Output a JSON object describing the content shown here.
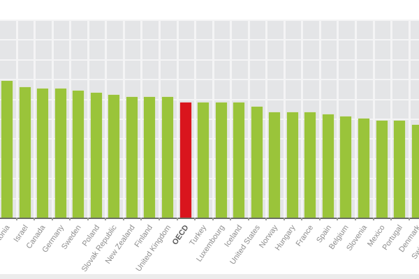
{
  "chart_data": {
    "type": "bar",
    "title": "",
    "xlabel": "",
    "ylabel": "",
    "ylim": [
      0,
      10
    ],
    "grid": true,
    "legend": null,
    "note": "Y-axis has no visible tick labels; values are expressed in gridline units (10 equal intervals).",
    "categories": [
      "Estonia",
      "Israel",
      "Canada",
      "Germany",
      "Sweden",
      "Poland",
      "Slovak Republic",
      "New Zealand",
      "Finland",
      "United Kingdom",
      "OECD",
      "Turkey",
      "Luxembourg",
      "Iceland",
      "United States",
      "Norway",
      "Hungary",
      "France",
      "Spain",
      "Belgium",
      "Slovenia",
      "Mexico",
      "Portugal",
      "Denmark",
      "Switzerland"
    ],
    "values": [
      6.9,
      6.6,
      6.5,
      6.5,
      6.4,
      6.3,
      6.2,
      6.1,
      6.1,
      6.1,
      5.8,
      5.8,
      5.8,
      5.8,
      5.6,
      5.3,
      5.3,
      5.3,
      5.2,
      5.1,
      5.0,
      4.9,
      4.9,
      4.7,
      null
    ],
    "highlight_category": "OECD",
    "colors": {
      "bar": "#9ac43a",
      "highlight": "#d9151d",
      "plot_background": "#e4e5e7",
      "grid": "#f4f4f5"
    }
  }
}
